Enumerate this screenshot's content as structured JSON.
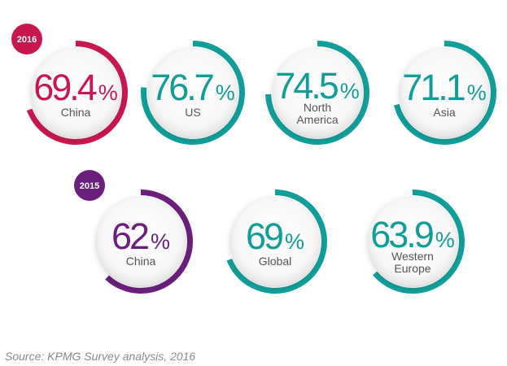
{
  "chart_data": {
    "type": "gauge",
    "unit": "%",
    "groups": [
      {
        "year": "2016",
        "color": "#c8174f",
        "items": [
          {
            "value": 69.4,
            "label": "69.4",
            "region": [
              "China"
            ],
            "color": "#c8174f"
          },
          {
            "value": 76.7,
            "label": "76.7",
            "region": [
              "US"
            ],
            "color": "#119e99"
          },
          {
            "value": 74.5,
            "label": "74.5",
            "region": [
              "North",
              "America"
            ],
            "color": "#119e99"
          },
          {
            "value": 71.1,
            "label": "71.1",
            "region": [
              "Asia"
            ],
            "color": "#119e99"
          }
        ]
      },
      {
        "year": "2015",
        "color": "#6b1f7c",
        "items": [
          {
            "value": 62,
            "label": "62",
            "region": [
              "China"
            ],
            "color": "#6b1f7c"
          },
          {
            "value": 69,
            "label": "69",
            "region": [
              "Global"
            ],
            "color": "#119e99"
          },
          {
            "value": 63.9,
            "label": "63.9",
            "region": [
              "Western",
              "Europe"
            ],
            "color": "#119e99"
          }
        ]
      }
    ]
  },
  "source": "Source: KPMG Survey analysis, 2016"
}
